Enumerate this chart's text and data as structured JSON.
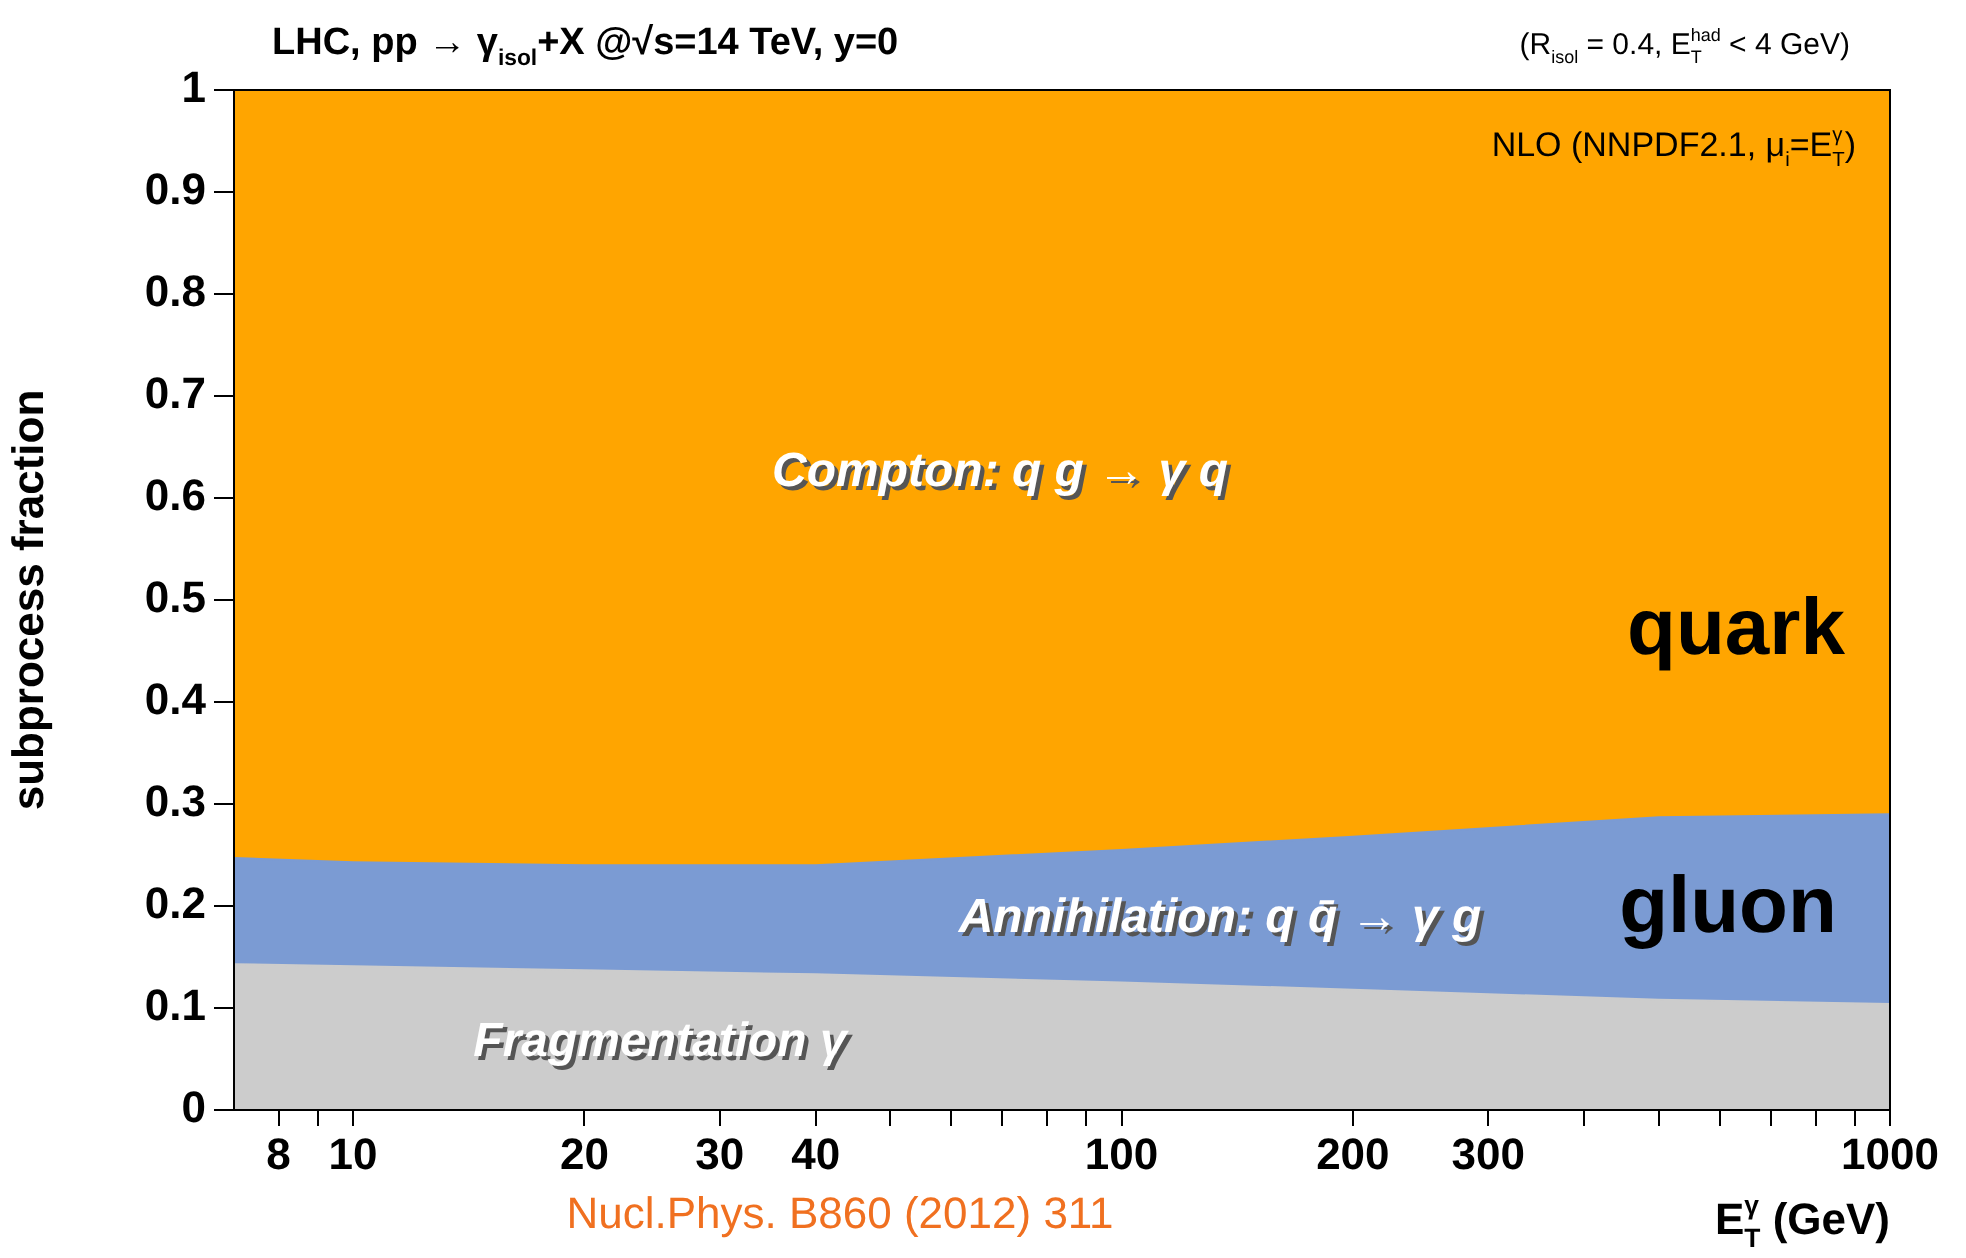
{
  "chart_data": {
    "type": "area",
    "stacked": true,
    "title": "LHC, pp → γ$_{isol}$+X @√s=14 TeV, y=0",
    "subtitle": "(R$_{isol}$ = 0.4, E$_{T}$$^{had}$ < 4 GeV)",
    "xlabel": "E$_{T}$$^{γ}$ (GeV)",
    "ylabel": "subprocess fraction",
    "x": [
      7,
      10,
      20,
      40,
      100,
      200,
      500,
      1000
    ],
    "series": [
      {
        "name": "Fragmentation γ",
        "color": "#cccccc",
        "values": [
          0.143,
          0.141,
          0.137,
          0.133,
          0.125,
          0.118,
          0.108,
          0.104
        ]
      },
      {
        "name": "Annihilation: q q̄ → γ g",
        "color": "#7b9bd3",
        "values": [
          0.104,
          0.102,
          0.103,
          0.107,
          0.13,
          0.15,
          0.179,
          0.186
        ]
      },
      {
        "name": "Compton: q g → γ q",
        "color": "#ffa500",
        "values": [
          0.753,
          0.757,
          0.76,
          0.76,
          0.745,
          0.732,
          0.713,
          0.71
        ]
      }
    ],
    "log": "x",
    "xlim": [
      7,
      1000
    ],
    "xticks": [
      8,
      {
        "value": 9,
        "label": null
      },
      10,
      20,
      30,
      40,
      {
        "value": 50,
        "label": null
      },
      {
        "value": 60,
        "label": null
      },
      {
        "value": 70,
        "label": null
      },
      {
        "value": 80,
        "label": null
      },
      {
        "value": 90,
        "label": null
      },
      100,
      200,
      300,
      {
        "value": 400,
        "label": null
      },
      {
        "value": 500,
        "label": null
      },
      {
        "value": 600,
        "label": null
      },
      {
        "value": 700,
        "label": null
      },
      {
        "value": 800,
        "label": null
      },
      {
        "value": 900,
        "label": null
      },
      1000
    ],
    "ylim": [
      0,
      1
    ],
    "yticks": [
      0,
      0.1,
      0.2,
      0.3,
      0.4,
      0.5,
      0.6,
      0.7,
      0.8,
      0.9,
      1
    ],
    "legend": false,
    "marker": "none",
    "annotations": [
      "quark",
      "gluon",
      "NLO (NNPDF2.1, μ$_{i}$=E$_{T}$$^{γ}$)",
      "Nucl.Phys. B860 (2012) 311"
    ]
  }
}
